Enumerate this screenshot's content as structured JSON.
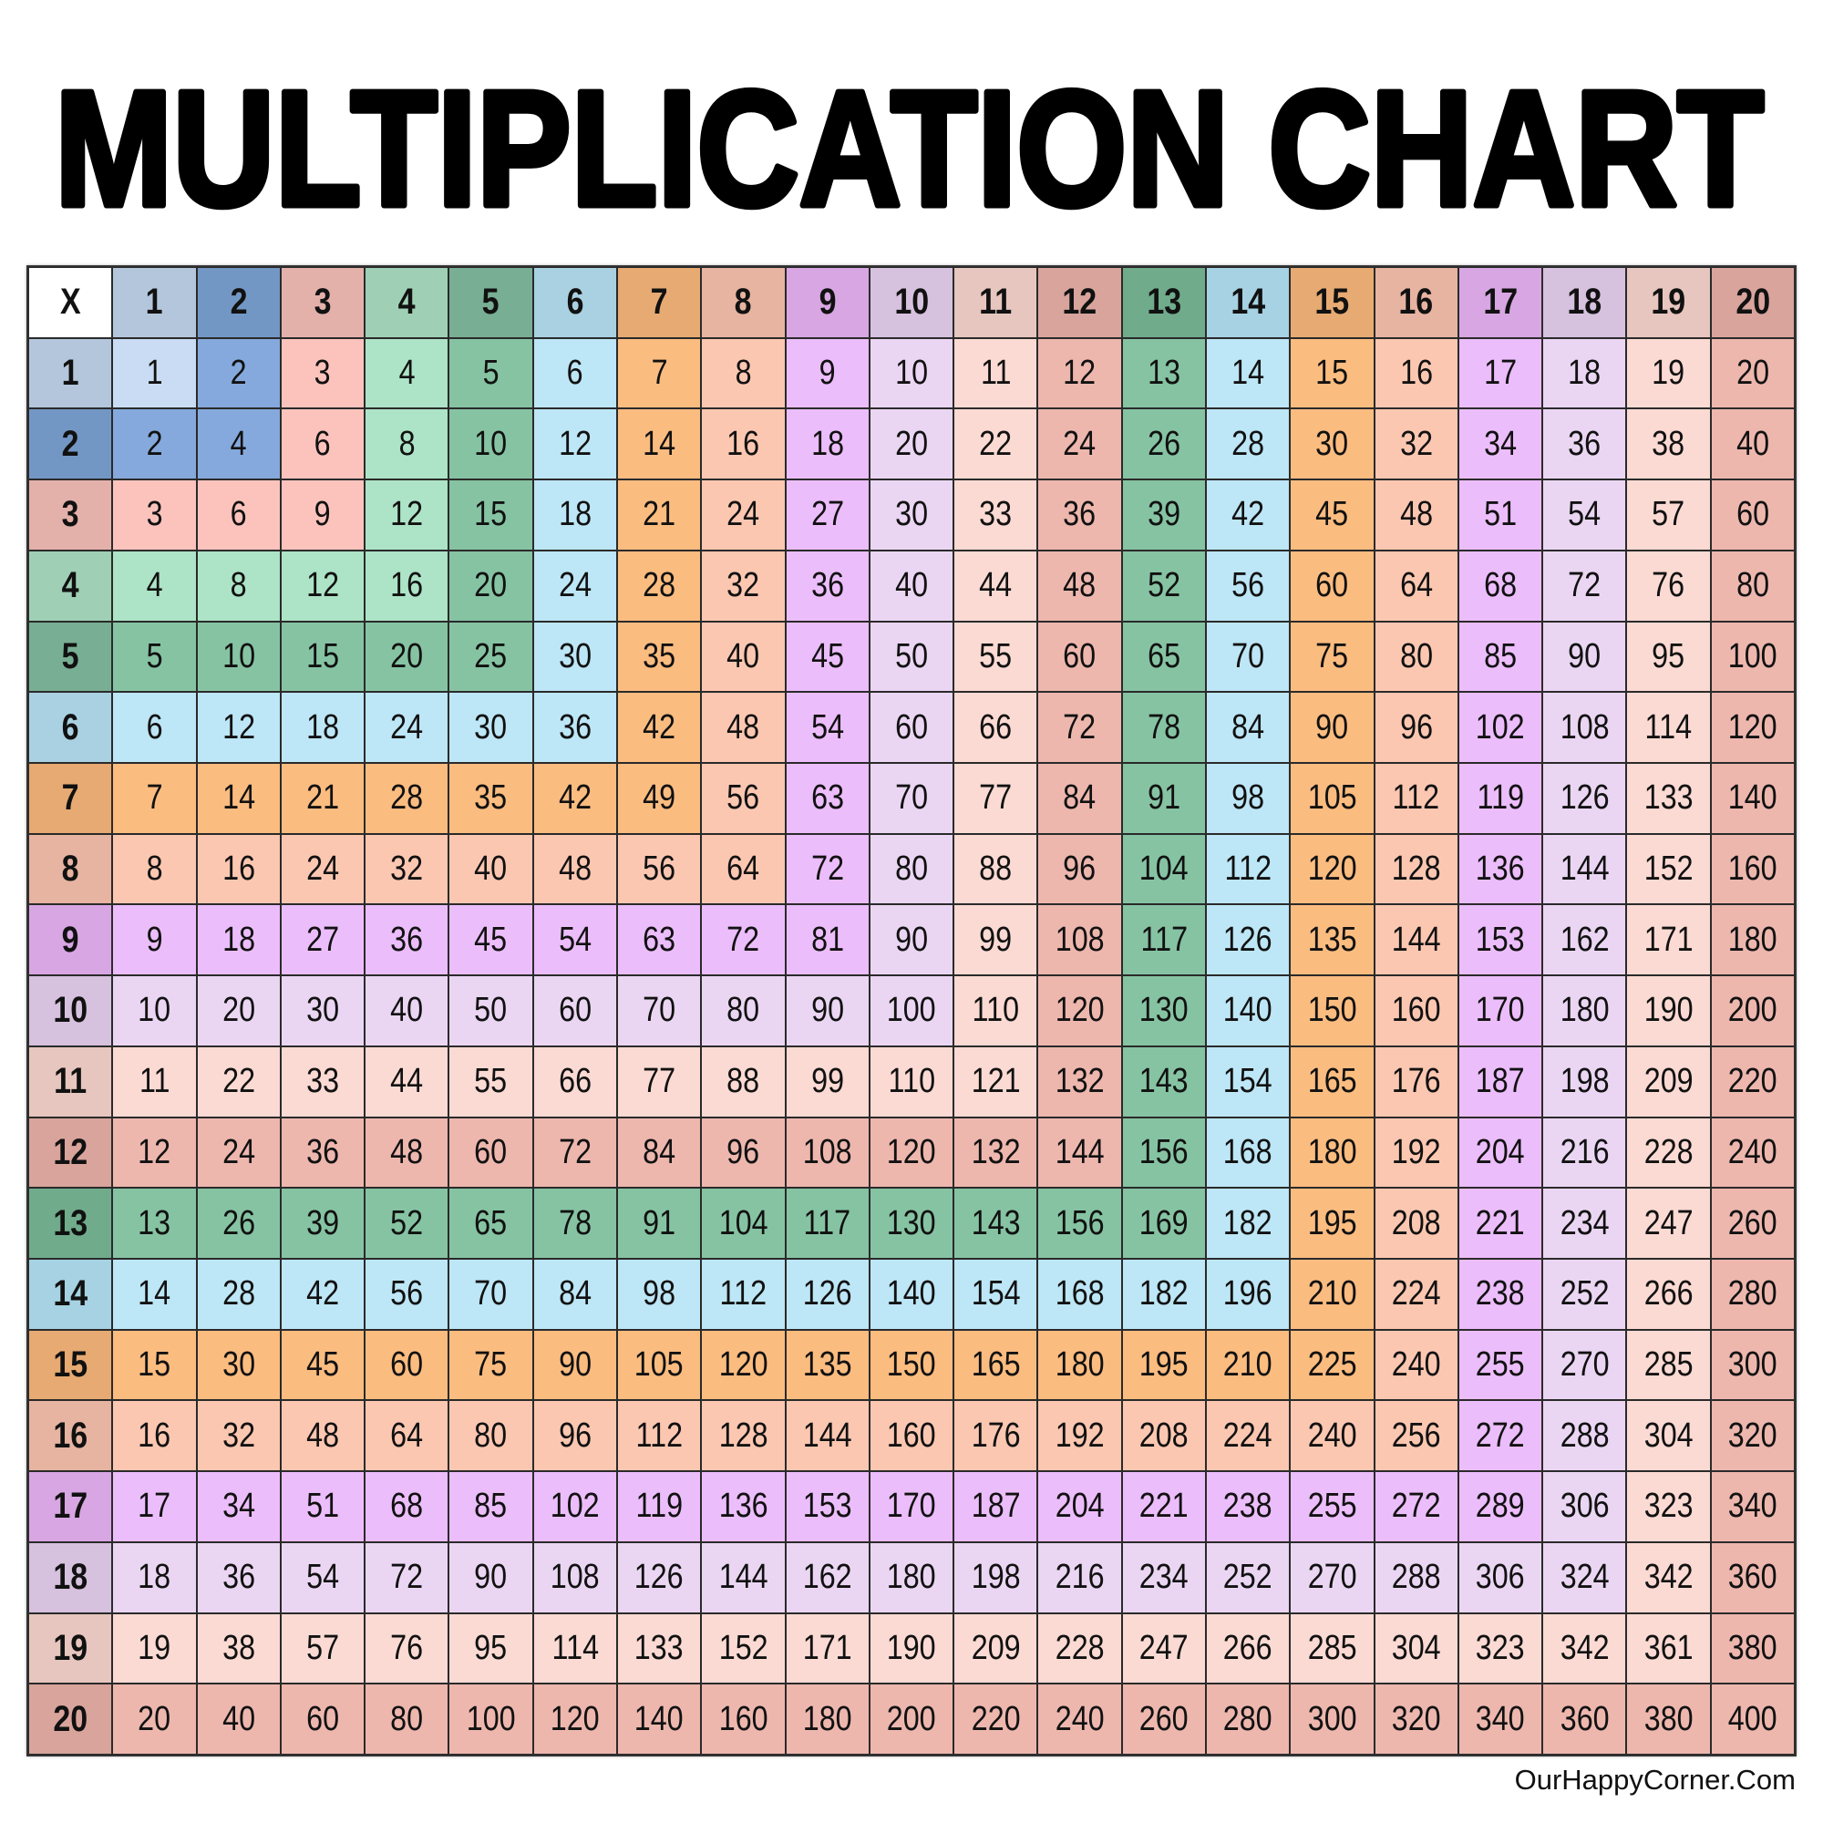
{
  "title": "MULTIPLICATION CHART",
  "footer": "OurHappyCorner.Com",
  "chart_data": {
    "type": "table",
    "corner_label": "X",
    "column_headers": [
      "1",
      "2",
      "3",
      "4",
      "5",
      "6",
      "7",
      "8",
      "9",
      "10",
      "11",
      "12",
      "13",
      "14",
      "15",
      "16",
      "17",
      "18",
      "19",
      "20"
    ],
    "row_headers": [
      "1",
      "2",
      "3",
      "4",
      "5",
      "6",
      "7",
      "8",
      "9",
      "10",
      "11",
      "12",
      "13",
      "14",
      "15",
      "16",
      "17",
      "18",
      "19",
      "20"
    ],
    "rows": [
      [
        1,
        2,
        3,
        4,
        5,
        6,
        7,
        8,
        9,
        10,
        11,
        12,
        13,
        14,
        15,
        16,
        17,
        18,
        19,
        20
      ],
      [
        2,
        4,
        6,
        8,
        10,
        12,
        14,
        16,
        18,
        20,
        22,
        24,
        26,
        28,
        30,
        32,
        34,
        36,
        38,
        40
      ],
      [
        3,
        6,
        9,
        12,
        15,
        18,
        21,
        24,
        27,
        30,
        33,
        36,
        39,
        42,
        45,
        48,
        51,
        54,
        57,
        60
      ],
      [
        4,
        8,
        12,
        16,
        20,
        24,
        28,
        32,
        36,
        40,
        44,
        48,
        52,
        56,
        60,
        64,
        68,
        72,
        76,
        80
      ],
      [
        5,
        10,
        15,
        20,
        25,
        30,
        35,
        40,
        45,
        50,
        55,
        60,
        65,
        70,
        75,
        80,
        85,
        90,
        95,
        100
      ],
      [
        6,
        12,
        18,
        24,
        30,
        36,
        42,
        48,
        54,
        60,
        66,
        72,
        78,
        84,
        90,
        96,
        102,
        108,
        114,
        120
      ],
      [
        7,
        14,
        21,
        28,
        35,
        42,
        49,
        56,
        63,
        70,
        77,
        84,
        91,
        98,
        105,
        112,
        119,
        126,
        133,
        140
      ],
      [
        8,
        16,
        24,
        32,
        40,
        48,
        56,
        64,
        72,
        80,
        88,
        96,
        104,
        112,
        120,
        128,
        136,
        144,
        152,
        160
      ],
      [
        9,
        18,
        27,
        36,
        45,
        54,
        63,
        72,
        81,
        90,
        99,
        108,
        117,
        126,
        135,
        144,
        153,
        162,
        171,
        180
      ],
      [
        10,
        20,
        30,
        40,
        50,
        60,
        70,
        80,
        90,
        100,
        110,
        120,
        130,
        140,
        150,
        160,
        170,
        180,
        190,
        200
      ],
      [
        11,
        22,
        33,
        44,
        55,
        66,
        77,
        88,
        99,
        110,
        121,
        132,
        143,
        154,
        165,
        176,
        187,
        198,
        209,
        220
      ],
      [
        12,
        24,
        36,
        48,
        60,
        72,
        84,
        96,
        108,
        120,
        132,
        144,
        156,
        168,
        180,
        192,
        204,
        216,
        228,
        240
      ],
      [
        13,
        26,
        39,
        52,
        65,
        78,
        91,
        104,
        117,
        130,
        143,
        156,
        169,
        182,
        195,
        208,
        221,
        234,
        247,
        260
      ],
      [
        14,
        28,
        42,
        56,
        70,
        84,
        98,
        112,
        126,
        140,
        154,
        168,
        182,
        196,
        210,
        224,
        238,
        252,
        266,
        280
      ],
      [
        15,
        30,
        45,
        60,
        75,
        90,
        105,
        120,
        135,
        150,
        165,
        180,
        195,
        210,
        225,
        240,
        255,
        270,
        285,
        300
      ],
      [
        16,
        32,
        48,
        64,
        80,
        96,
        112,
        128,
        144,
        160,
        176,
        192,
        208,
        224,
        240,
        256,
        272,
        288,
        304,
        320
      ],
      [
        17,
        34,
        51,
        68,
        85,
        102,
        119,
        136,
        153,
        170,
        187,
        204,
        221,
        238,
        255,
        272,
        289,
        306,
        323,
        340
      ],
      [
        18,
        36,
        54,
        72,
        90,
        108,
        126,
        144,
        162,
        180,
        198,
        216,
        234,
        252,
        270,
        288,
        306,
        324,
        342,
        360
      ],
      [
        19,
        38,
        57,
        76,
        95,
        114,
        133,
        152,
        171,
        190,
        209,
        228,
        247,
        266,
        285,
        304,
        323,
        342,
        361,
        380
      ],
      [
        20,
        40,
        60,
        80,
        100,
        120,
        140,
        160,
        180,
        200,
        220,
        240,
        260,
        280,
        300,
        320,
        340,
        360,
        380,
        400
      ]
    ],
    "colors": {
      "header": [
        "#b4c6dc",
        "#7397c4",
        "#e3b1aa",
        "#9fd0b6",
        "#78ae94",
        "#a9d1e1",
        "#e6aa72",
        "#e6b4a0",
        "#d8a6e2",
        "#d6c1de",
        "#e6c6be",
        "#d8a49c",
        "#70ab8c",
        "#a6d2e3",
        "#e6aa72",
        "#e6b4a0",
        "#d8a6e2",
        "#d6c1de",
        "#e6c6be",
        "#d8a49c"
      ],
      "body": [
        "#c9dcf3",
        "#85a9dc",
        "#fcc3bd",
        "#ade3c6",
        "#86c3a3",
        "#bde6f6",
        "#fbbc80",
        "#fcc7b1",
        "#ecbdfb",
        "#ead6f2",
        "#fbdad3",
        "#edb7ae",
        "#86c3a3",
        "#bde6f6",
        "#fbbc80",
        "#fcc7b1",
        "#ecbdfb",
        "#ead6f2",
        "#fbdad3",
        "#edb7ae"
      ],
      "corner": "#ffffff"
    }
  }
}
